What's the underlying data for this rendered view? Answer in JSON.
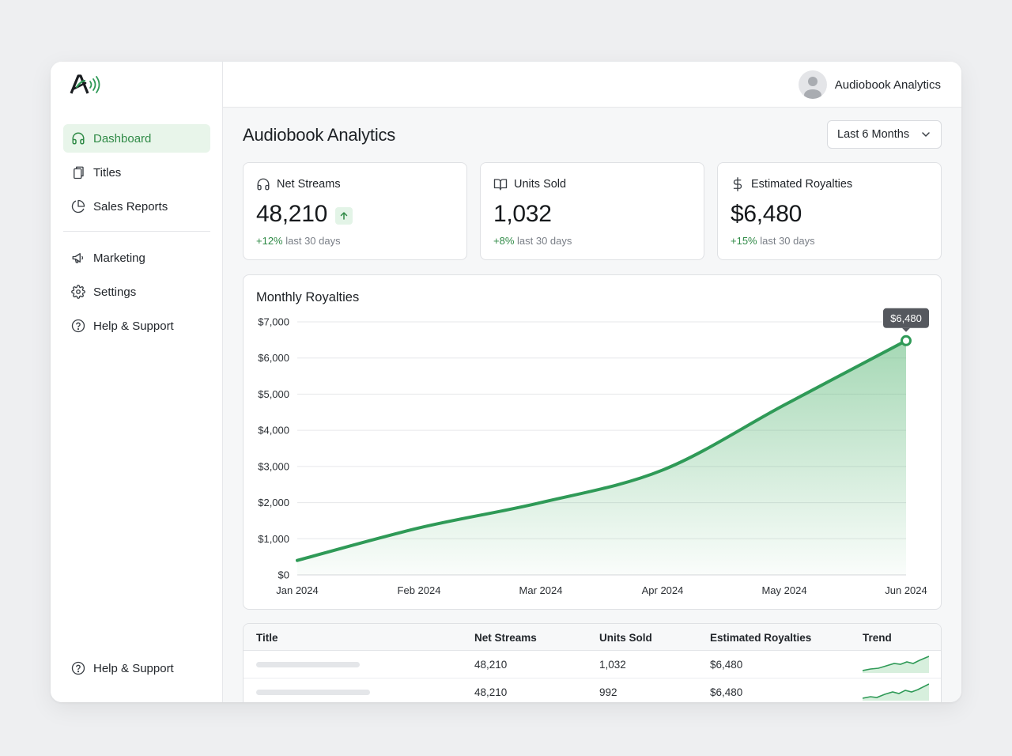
{
  "sidebar": {
    "items": [
      {
        "label": "Dashboard",
        "icon": "headphones-icon"
      },
      {
        "label": "Titles",
        "icon": "copy-icon"
      },
      {
        "label": "Sales Reports",
        "icon": "pie-chart-icon"
      },
      {
        "label": "Marketing",
        "icon": "megaphone-icon"
      },
      {
        "label": "Settings",
        "icon": "gear-icon"
      },
      {
        "label": "Help & Support",
        "icon": "help-circle-icon"
      }
    ],
    "bottom_item": {
      "label": "Help & Support",
      "icon": "help-circle-icon"
    }
  },
  "topbar": {
    "user_name": "Audiobook Analytics"
  },
  "header": {
    "title": "Audiobook Analytics",
    "period": "Last 6 Months"
  },
  "kpis": [
    {
      "label": "Net Streams",
      "icon": "headphones-icon",
      "value": "48,210",
      "delta": "+12%",
      "delta_text": " last 30 days",
      "trend": "up"
    },
    {
      "label": "Units Sold",
      "icon": "book-open-icon",
      "value": "1,032",
      "delta": "+8%",
      "delta_text": " last 30 days"
    },
    {
      "label": "Estimated Royalties",
      "icon": "dollar-icon",
      "value": "$6,480",
      "delta": "+15%",
      "delta_text": " last 30 days"
    }
  ],
  "chart_data": {
    "type": "area",
    "title": "Monthly Royalties",
    "x": [
      "Jan 2024",
      "Feb 2024",
      "Mar 2024",
      "Apr 2024",
      "May 2024",
      "Jun 2024"
    ],
    "y": [
      400,
      1300,
      2000,
      2900,
      4700,
      6480
    ],
    "ylim": [
      0,
      7000
    ],
    "yticks": [
      "$0",
      "$1,000",
      "$2,000",
      "$3,000",
      "$4,000",
      "$5,000",
      "$6,000",
      "$7,000"
    ],
    "grid": true,
    "callout": "$6,480",
    "color": "#2f9a57"
  },
  "table": {
    "headers": [
      "Title",
      "Net Streams",
      "Units Sold",
      "Estimated Royalties",
      "Trend"
    ],
    "rows": [
      {
        "streams": "48,210",
        "units": "1,032",
        "royalties": "$6,480"
      },
      {
        "streams": "48,210",
        "units": "992",
        "royalties": "$6,480"
      }
    ]
  },
  "colors": {
    "accent": "#2f8a46",
    "accent_bg": "#e8f5ea",
    "line": "#2f9a57"
  }
}
